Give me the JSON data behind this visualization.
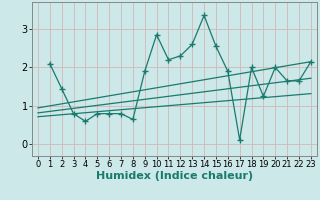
{
  "title": "",
  "xlabel": "Humidex (Indice chaleur)",
  "ylabel": "",
  "background_color": "#cce8e8",
  "grid_color": "#b8d8d8",
  "line_color": "#1a7a6e",
  "xlim": [
    -0.5,
    23.5
  ],
  "ylim": [
    -0.3,
    3.7
  ],
  "yticks": [
    0,
    1,
    2,
    3
  ],
  "xticks": [
    0,
    1,
    2,
    3,
    4,
    5,
    6,
    7,
    8,
    9,
    10,
    11,
    12,
    13,
    14,
    15,
    16,
    17,
    18,
    19,
    20,
    21,
    22,
    23
  ],
  "series1_x": [
    1,
    2,
    3,
    4,
    5,
    6,
    7,
    8,
    9,
    10,
    11,
    12,
    13,
    14,
    15,
    16,
    17,
    18,
    19,
    20,
    21,
    22,
    23
  ],
  "series1_y": [
    2.1,
    1.45,
    0.8,
    0.6,
    0.8,
    0.8,
    0.8,
    0.65,
    1.9,
    2.85,
    2.2,
    2.3,
    2.6,
    3.35,
    2.55,
    1.9,
    0.12,
    2.0,
    1.25,
    2.0,
    1.65,
    1.65,
    2.15
  ],
  "trend1_x": [
    0,
    23
  ],
  "trend1_y": [
    0.72,
    1.32
  ],
  "trend2_x": [
    0,
    23
  ],
  "trend2_y": [
    0.82,
    1.72
  ],
  "trend3_x": [
    0,
    23
  ],
  "trend3_y": [
    0.95,
    2.15
  ],
  "xlabel_fontsize": 8,
  "tick_fontsize": 7,
  "xtick_fontsize": 6
}
